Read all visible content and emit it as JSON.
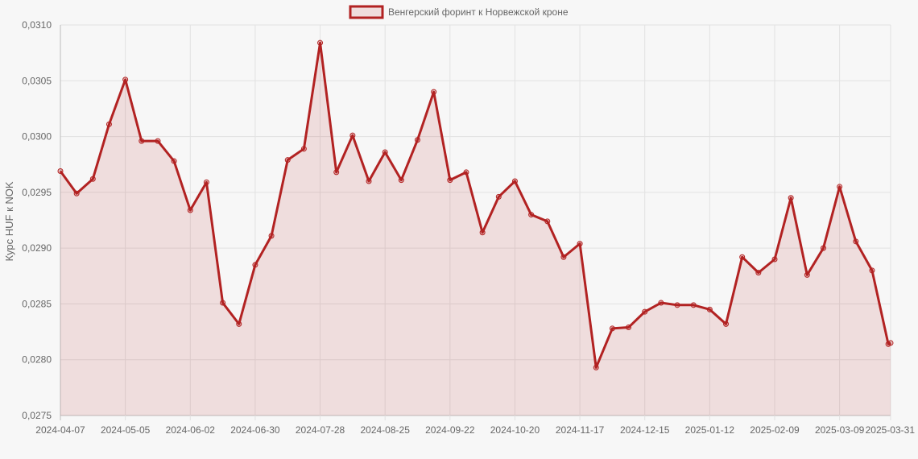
{
  "chart_data": {
    "type": "area",
    "title": "",
    "xlabel": "",
    "ylabel": "Курс HUF к NOK",
    "legend": {
      "position": "top",
      "entries": [
        "Венгерский форинт к Норвежской кроне"
      ]
    },
    "grid": true,
    "ylim": [
      0.0275,
      0.031
    ],
    "y_ticks": [
      "0,0310",
      "0,0305",
      "0,0300",
      "0,0295",
      "0,0290",
      "0,0285",
      "0,0280",
      "0,0275"
    ],
    "x_tick_labels": [
      "2024-04-07",
      "2024-05-05",
      "2024-06-02",
      "2024-06-30",
      "2024-07-28",
      "2024-08-25",
      "2024-09-22",
      "2024-10-20",
      "2024-11-17",
      "2024-12-15",
      "2025-01-12",
      "2025-02-09",
      "2025-03-09",
      "2025-03-31"
    ],
    "x": [
      "2024-04-07",
      "2024-04-14",
      "2024-04-21",
      "2024-04-28",
      "2024-05-05",
      "2024-05-12",
      "2024-05-19",
      "2024-05-26",
      "2024-06-02",
      "2024-06-09",
      "2024-06-16",
      "2024-06-23",
      "2024-06-30",
      "2024-07-07",
      "2024-07-14",
      "2024-07-21",
      "2024-07-28",
      "2024-08-04",
      "2024-08-11",
      "2024-08-18",
      "2024-08-25",
      "2024-09-01",
      "2024-09-08",
      "2024-09-15",
      "2024-09-22",
      "2024-09-29",
      "2024-10-06",
      "2024-10-13",
      "2024-10-20",
      "2024-10-27",
      "2024-11-03",
      "2024-11-10",
      "2024-11-17",
      "2024-11-24",
      "2024-12-01",
      "2024-12-08",
      "2024-12-15",
      "2024-12-22",
      "2024-12-29",
      "2025-01-05",
      "2025-01-12",
      "2025-01-19",
      "2025-01-26",
      "2025-02-02",
      "2025-02-09",
      "2025-02-16",
      "2025-02-23",
      "2025-03-02",
      "2025-03-09",
      "2025-03-16",
      "2025-03-23",
      "2025-03-30",
      "2025-03-31"
    ],
    "series": [
      {
        "name": "Венгерский форинт к Норвежской кроне",
        "color": "#b22222",
        "fill": "rgba(178,34,34,0.12)",
        "values": [
          0.02969,
          0.02949,
          0.02962,
          0.03011,
          0.03051,
          0.02996,
          0.02996,
          0.02978,
          0.02934,
          0.02959,
          0.02851,
          0.02832,
          0.02885,
          0.02911,
          0.02979,
          0.02989,
          0.03084,
          0.02968,
          0.03001,
          0.0296,
          0.02986,
          0.02961,
          0.02997,
          0.0304,
          0.02961,
          0.02968,
          0.02914,
          0.02946,
          0.0296,
          0.0293,
          0.02924,
          0.02892,
          0.02904,
          0.02793,
          0.02828,
          0.02829,
          0.02843,
          0.02851,
          0.02849,
          0.02849,
          0.02845,
          0.02832,
          0.02892,
          0.02878,
          0.0289,
          0.02945,
          0.02876,
          0.029,
          0.02955,
          0.02906,
          0.0288,
          0.02814,
          0.02815
        ]
      }
    ]
  }
}
